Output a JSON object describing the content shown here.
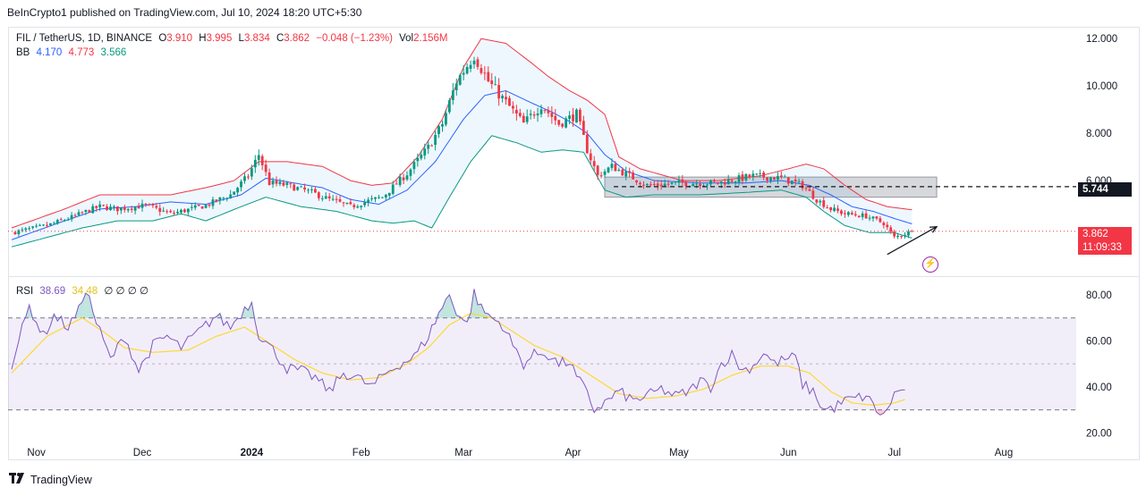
{
  "publisher": "BeInCrypto1 published on TradingView.com, Jul 10, 2024 18:20 UTC+5:30",
  "legend": {
    "symbol": "FIL / TetherUS, 1D, BINANCE",
    "o_label": "O",
    "o": "3.910",
    "h_label": "H",
    "h": "3.995",
    "l_label": "L",
    "l": "3.834",
    "c_label": "C",
    "c": "3.862",
    "change": "−0.048 (−1.23%)",
    "vol_label": "Vol",
    "vol": "2.156M",
    "bb_label": "BB",
    "bb_basis": "4.170",
    "bb_upper": "4.773",
    "bb_lower": "3.566",
    "rsi_label": "RSI",
    "rsi_value": "38.69",
    "rsi_ma": "34.48",
    "rsi_extra": "∅ ∅ ∅ ∅"
  },
  "price_tags": {
    "level": "5.744",
    "current": "3.862",
    "countdown": "11:09:33"
  },
  "colors": {
    "up": "#089981",
    "down": "#f23645",
    "basis": "#2962ff",
    "upper": "#f23645",
    "lower": "#089981",
    "rsi": "#7e57c2",
    "rsi_ma": "#fdd835"
  },
  "icons": [
    "bolt-icon",
    "tradingview-logo-icon"
  ],
  "footer_brand": "TradingView",
  "chart_data": [
    {
      "type": "candlestick",
      "title": "FIL / TetherUS, 1D, BINANCE",
      "x_range": [
        "2023-10-25",
        "2024-08-20"
      ],
      "ylim": [
        2.0,
        12.5
      ],
      "y_ticks": [
        12.0,
        10.0,
        8.0,
        6.0
      ],
      "y_tick_labels": [
        "12.000",
        "10.000",
        "8.000",
        "6.000"
      ],
      "x_tick_labels": [
        "Nov",
        "Dec",
        "2024",
        "Feb",
        "Mar",
        "Apr",
        "May",
        "Jun",
        "Jul",
        "Aug"
      ],
      "x_tick_days": [
        7,
        37,
        68,
        99,
        128,
        159,
        189,
        220,
        250,
        281
      ],
      "close_anchors": [
        [
          0,
          3.8
        ],
        [
          10,
          4.1
        ],
        [
          17,
          4.45
        ],
        [
          22,
          4.75
        ],
        [
          25,
          4.9
        ],
        [
          30,
          4.8
        ],
        [
          38,
          4.95
        ],
        [
          45,
          4.6
        ],
        [
          55,
          4.95
        ],
        [
          62,
          5.4
        ],
        [
          67,
          6.2
        ],
        [
          70,
          7.1
        ],
        [
          73,
          5.9
        ],
        [
          78,
          5.8
        ],
        [
          85,
          5.5
        ],
        [
          90,
          5.2
        ],
        [
          96,
          4.9
        ],
        [
          100,
          5.1
        ],
        [
          105,
          5.3
        ],
        [
          112,
          6.3
        ],
        [
          118,
          7.4
        ],
        [
          122,
          8.4
        ],
        [
          126,
          10.2
        ],
        [
          131,
          11.3
        ],
        [
          135,
          10.2
        ],
        [
          140,
          9.3
        ],
        [
          145,
          8.4
        ],
        [
          150,
          9.2
        ],
        [
          155,
          8.4
        ],
        [
          160,
          8.8
        ],
        [
          163,
          7.3
        ],
        [
          166,
          6.2
        ],
        [
          170,
          6.6
        ],
        [
          175,
          6.2
        ],
        [
          180,
          5.8
        ],
        [
          190,
          5.9
        ],
        [
          200,
          5.9
        ],
        [
          210,
          6.2
        ],
        [
          218,
          6.1
        ],
        [
          224,
          5.8
        ],
        [
          228,
          5.2
        ],
        [
          232,
          4.8
        ],
        [
          236,
          4.6
        ],
        [
          242,
          4.5
        ],
        [
          247,
          4.2
        ],
        [
          250,
          3.6
        ],
        [
          255,
          3.86
        ]
      ],
      "upper_band_anchors": [
        [
          0,
          4.0
        ],
        [
          15,
          4.8
        ],
        [
          25,
          5.4
        ],
        [
          35,
          5.4
        ],
        [
          45,
          5.4
        ],
        [
          55,
          5.7
        ],
        [
          63,
          6.0
        ],
        [
          70,
          6.8
        ],
        [
          78,
          6.8
        ],
        [
          88,
          6.6
        ],
        [
          96,
          6.0
        ],
        [
          102,
          5.8
        ],
        [
          108,
          5.9
        ],
        [
          115,
          7.0
        ],
        [
          122,
          8.6
        ],
        [
          128,
          10.8
        ],
        [
          133,
          12.0
        ],
        [
          140,
          11.8
        ],
        [
          147,
          11.0
        ],
        [
          152,
          10.4
        ],
        [
          158,
          9.8
        ],
        [
          163,
          9.4
        ],
        [
          168,
          8.8
        ],
        [
          172,
          7.0
        ],
        [
          178,
          6.5
        ],
        [
          190,
          6.0
        ],
        [
          200,
          6.0
        ],
        [
          212,
          6.2
        ],
        [
          220,
          6.5
        ],
        [
          225,
          6.7
        ],
        [
          230,
          6.5
        ],
        [
          236,
          5.8
        ],
        [
          242,
          5.2
        ],
        [
          248,
          4.9
        ],
        [
          255,
          4.77
        ]
      ],
      "basis_anchors": [
        [
          0,
          3.5
        ],
        [
          15,
          4.3
        ],
        [
          25,
          4.8
        ],
        [
          35,
          4.9
        ],
        [
          45,
          5.1
        ],
        [
          55,
          5.0
        ],
        [
          65,
          5.4
        ],
        [
          72,
          6.1
        ],
        [
          80,
          5.9
        ],
        [
          88,
          5.7
        ],
        [
          96,
          5.2
        ],
        [
          104,
          5.0
        ],
        [
          112,
          5.6
        ],
        [
          120,
          6.8
        ],
        [
          128,
          8.6
        ],
        [
          134,
          9.6
        ],
        [
          140,
          9.8
        ],
        [
          147,
          9.3
        ],
        [
          153,
          8.9
        ],
        [
          158,
          8.5
        ],
        [
          163,
          8.0
        ],
        [
          168,
          7.1
        ],
        [
          174,
          6.4
        ],
        [
          182,
          6.0
        ],
        [
          195,
          5.9
        ],
        [
          208,
          5.9
        ],
        [
          218,
          6.0
        ],
        [
          226,
          5.8
        ],
        [
          232,
          5.4
        ],
        [
          238,
          4.9
        ],
        [
          244,
          4.7
        ],
        [
          250,
          4.4
        ],
        [
          255,
          4.17
        ]
      ],
      "lower_band_anchors": [
        [
          0,
          3.2
        ],
        [
          10,
          3.6
        ],
        [
          20,
          4.0
        ],
        [
          30,
          4.3
        ],
        [
          40,
          4.3
        ],
        [
          48,
          4.6
        ],
        [
          55,
          4.3
        ],
        [
          65,
          4.9
        ],
        [
          72,
          5.3
        ],
        [
          82,
          4.9
        ],
        [
          92,
          4.7
        ],
        [
          102,
          4.3
        ],
        [
          108,
          4.2
        ],
        [
          114,
          4.3
        ],
        [
          119,
          4.0
        ],
        [
          124,
          5.3
        ],
        [
          130,
          6.8
        ],
        [
          136,
          7.9
        ],
        [
          143,
          7.6
        ],
        [
          150,
          7.2
        ],
        [
          156,
          7.3
        ],
        [
          162,
          7.2
        ],
        [
          168,
          5.6
        ],
        [
          174,
          5.3
        ],
        [
          182,
          5.4
        ],
        [
          195,
          5.4
        ],
        [
          208,
          5.5
        ],
        [
          218,
          5.6
        ],
        [
          225,
          5.3
        ],
        [
          230,
          4.7
        ],
        [
          236,
          4.1
        ],
        [
          243,
          3.8
        ],
        [
          250,
          3.8
        ],
        [
          255,
          3.57
        ]
      ],
      "annotations": [
        {
          "type": "horizontal-dashed-line",
          "value": 5.744
        },
        {
          "type": "horizontal-dotted-line",
          "value": 3.862
        },
        {
          "type": "range-box",
          "y_from": 5.3,
          "y_to": 6.15,
          "day_from": 168,
          "day_to": 262
        },
        {
          "type": "arrow",
          "from": [
            248,
            2.88
          ],
          "to": [
            262,
            4.05
          ]
        }
      ]
    },
    {
      "type": "line",
      "title": "RSI",
      "ylim": [
        17,
        87
      ],
      "y_ticks": [
        80,
        60,
        40,
        20
      ],
      "y_tick_labels": [
        "80.00",
        "60.00",
        "40.00",
        "20.00"
      ],
      "levels": [
        70,
        50,
        30
      ],
      "rsi_anchors": [
        [
          0,
          50
        ],
        [
          5,
          75
        ],
        [
          9,
          62
        ],
        [
          12,
          71
        ],
        [
          16,
          66
        ],
        [
          19,
          73
        ],
        [
          21,
          83
        ],
        [
          24,
          68
        ],
        [
          28,
          52
        ],
        [
          32,
          62
        ],
        [
          36,
          47
        ],
        [
          40,
          58
        ],
        [
          44,
          62
        ],
        [
          48,
          57
        ],
        [
          53,
          64
        ],
        [
          58,
          71
        ],
        [
          62,
          66
        ],
        [
          66,
          74
        ],
        [
          68,
          77
        ],
        [
          70,
          63
        ],
        [
          74,
          56
        ],
        [
          78,
          48
        ],
        [
          82,
          47
        ],
        [
          86,
          44
        ],
        [
          90,
          38
        ],
        [
          94,
          46
        ],
        [
          98,
          44
        ],
        [
          102,
          40
        ],
        [
          106,
          46
        ],
        [
          110,
          50
        ],
        [
          114,
          53
        ],
        [
          118,
          62
        ],
        [
          121,
          72
        ],
        [
          124,
          80
        ],
        [
          126,
          73
        ],
        [
          129,
          67
        ],
        [
          131,
          81
        ],
        [
          133,
          74
        ],
        [
          136,
          70
        ],
        [
          139,
          67
        ],
        [
          142,
          58
        ],
        [
          145,
          50
        ],
        [
          148,
          54
        ],
        [
          151,
          55
        ],
        [
          155,
          50
        ],
        [
          158,
          51
        ],
        [
          160,
          44
        ],
        [
          162,
          40
        ],
        [
          165,
          30
        ],
        [
          168,
          33
        ],
        [
          172,
          38
        ],
        [
          176,
          34
        ],
        [
          180,
          36
        ],
        [
          184,
          39
        ],
        [
          188,
          36
        ],
        [
          192,
          38
        ],
        [
          195,
          43
        ],
        [
          198,
          40
        ],
        [
          201,
          50
        ],
        [
          204,
          54
        ],
        [
          207,
          47
        ],
        [
          210,
          49
        ],
        [
          213,
          55
        ],
        [
          216,
          50
        ],
        [
          219,
          52
        ],
        [
          222,
          53
        ],
        [
          224,
          41
        ],
        [
          227,
          38
        ],
        [
          230,
          30
        ],
        [
          233,
          31
        ],
        [
          236,
          34
        ],
        [
          239,
          35
        ],
        [
          242,
          36
        ],
        [
          245,
          30
        ],
        [
          247,
          27
        ],
        [
          250,
          37
        ],
        [
          253,
          38.7
        ]
      ],
      "ma_anchors": [
        [
          0,
          46
        ],
        [
          10,
          62
        ],
        [
          20,
          70
        ],
        [
          26,
          64
        ],
        [
          32,
          57
        ],
        [
          40,
          55
        ],
        [
          50,
          56
        ],
        [
          58,
          62
        ],
        [
          66,
          66
        ],
        [
          72,
          60
        ],
        [
          80,
          52
        ],
        [
          88,
          46
        ],
        [
          96,
          43
        ],
        [
          104,
          44
        ],
        [
          112,
          50
        ],
        [
          118,
          57
        ],
        [
          124,
          67
        ],
        [
          130,
          72
        ],
        [
          136,
          70
        ],
        [
          142,
          64
        ],
        [
          148,
          58
        ],
        [
          156,
          53
        ],
        [
          164,
          45
        ],
        [
          172,
          37
        ],
        [
          180,
          35
        ],
        [
          188,
          36
        ],
        [
          196,
          39
        ],
        [
          204,
          45
        ],
        [
          212,
          49
        ],
        [
          220,
          49
        ],
        [
          226,
          46
        ],
        [
          232,
          38
        ],
        [
          238,
          33
        ],
        [
          244,
          32
        ],
        [
          250,
          33
        ],
        [
          253,
          34.5
        ]
      ]
    }
  ]
}
